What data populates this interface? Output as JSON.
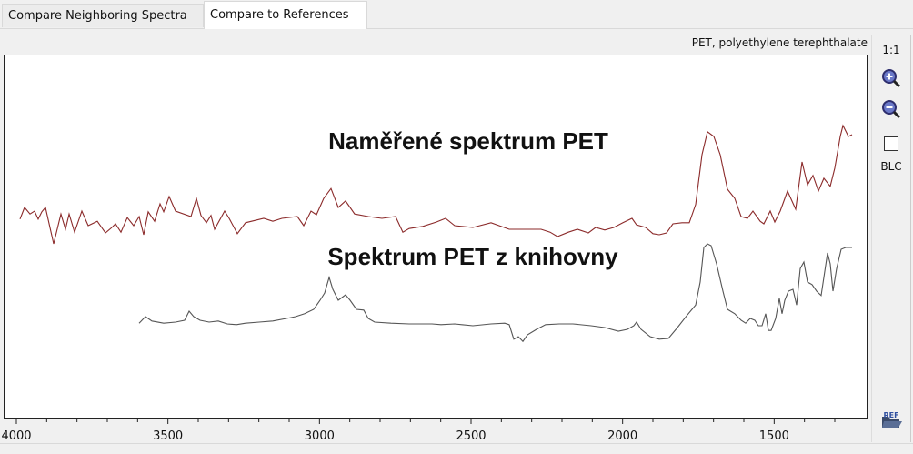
{
  "tabs": [
    {
      "label": "Compare Neighboring Spectra",
      "active": false
    },
    {
      "label": "Compare to References",
      "active": true
    }
  ],
  "reference_name": "PET, polyethylene terephthalate",
  "toolbar": {
    "one_to_one": "1:1",
    "zoom_in_icon": "zoom-in-icon",
    "zoom_out_icon": "zoom-out-icon",
    "blc_checked": false,
    "blc_label": "BLC",
    "ref_icon": "ref-folder-icon",
    "ref_icon_text": "REF"
  },
  "chart_data": {
    "type": "line",
    "xlabel": "",
    "ylabel": "",
    "xlim": [
      4000,
      1200
    ],
    "xticks": [
      4000,
      3500,
      3000,
      2500,
      2000,
      1500
    ],
    "minor_tick_step": 100,
    "y_axis_shown": false,
    "grid": false,
    "annotations": [
      "Naměřené spektrum PET",
      "Spektrum PET z knihovny"
    ],
    "series": [
      {
        "name": "Naměřené spektrum PET",
        "color": "#8b2a2a",
        "points": [
          [
            3988,
            54.8
          ],
          [
            3973,
            58
          ],
          [
            3955,
            56.2
          ],
          [
            3940,
            57
          ],
          [
            3928,
            54.8
          ],
          [
            3916,
            56.8
          ],
          [
            3904,
            58
          ],
          [
            3877,
            48
          ],
          [
            3853,
            56.2
          ],
          [
            3838,
            52
          ],
          [
            3826,
            56.2
          ],
          [
            3808,
            51.2
          ],
          [
            3784,
            57
          ],
          [
            3763,
            53
          ],
          [
            3733,
            54.2
          ],
          [
            3706,
            51
          ],
          [
            3685,
            52.5
          ],
          [
            3673,
            53.5
          ],
          [
            3655,
            51.2
          ],
          [
            3634,
            55.2
          ],
          [
            3613,
            53
          ],
          [
            3595,
            55.5
          ],
          [
            3580,
            50.5
          ],
          [
            3565,
            56.8
          ],
          [
            3544,
            54.2
          ],
          [
            3526,
            59
          ],
          [
            3514,
            56.8
          ],
          [
            3496,
            61
          ],
          [
            3475,
            57
          ],
          [
            3424,
            55.5
          ],
          [
            3406,
            60.5
          ],
          [
            3391,
            55.8
          ],
          [
            3373,
            53.8
          ],
          [
            3358,
            55.8
          ],
          [
            3346,
            52
          ],
          [
            3313,
            57
          ],
          [
            3298,
            55
          ],
          [
            3271,
            50.8
          ],
          [
            3244,
            53.8
          ],
          [
            3184,
            55
          ],
          [
            3154,
            54.2
          ],
          [
            3124,
            55
          ],
          [
            3073,
            55.5
          ],
          [
            3052,
            53
          ],
          [
            3028,
            57
          ],
          [
            3010,
            56
          ],
          [
            2986,
            60.5
          ],
          [
            2962,
            63.2
          ],
          [
            2938,
            58
          ],
          [
            2914,
            59.8
          ],
          [
            2884,
            56.2
          ],
          [
            2839,
            55.5
          ],
          [
            2794,
            55
          ],
          [
            2749,
            55.5
          ],
          [
            2725,
            51.2
          ],
          [
            2704,
            52.2
          ],
          [
            2659,
            52.8
          ],
          [
            2614,
            54
          ],
          [
            2584,
            55
          ],
          [
            2554,
            53
          ],
          [
            2494,
            52.5
          ],
          [
            2434,
            53.8
          ],
          [
            2374,
            52
          ],
          [
            2314,
            52
          ],
          [
            2269,
            52
          ],
          [
            2239,
            51.2
          ],
          [
            2215,
            50
          ],
          [
            2179,
            51.2
          ],
          [
            2149,
            52
          ],
          [
            2113,
            51
          ],
          [
            2089,
            52.5
          ],
          [
            2059,
            51.8
          ],
          [
            2029,
            52.5
          ],
          [
            1999,
            53.8
          ],
          [
            1969,
            55
          ],
          [
            1954,
            53.2
          ],
          [
            1924,
            52.5
          ],
          [
            1900,
            50.8
          ],
          [
            1879,
            50.5
          ],
          [
            1855,
            51
          ],
          [
            1834,
            53.5
          ],
          [
            1804,
            53.8
          ],
          [
            1780,
            53.8
          ],
          [
            1759,
            58.8
          ],
          [
            1738,
            72.5
          ],
          [
            1720,
            78.8
          ],
          [
            1699,
            77.5
          ],
          [
            1678,
            72.5
          ],
          [
            1654,
            63
          ],
          [
            1630,
            60.5
          ],
          [
            1609,
            55.5
          ],
          [
            1588,
            55
          ],
          [
            1570,
            57
          ],
          [
            1546,
            54.2
          ],
          [
            1534,
            53.5
          ],
          [
            1513,
            57
          ],
          [
            1498,
            54
          ],
          [
            1480,
            57
          ],
          [
            1456,
            62.5
          ],
          [
            1429,
            57.5
          ],
          [
            1408,
            70.5
          ],
          [
            1390,
            64.2
          ],
          [
            1372,
            66.8
          ],
          [
            1354,
            62.5
          ],
          [
            1336,
            66
          ],
          [
            1315,
            63.8
          ],
          [
            1300,
            68.8
          ],
          [
            1282,
            77.5
          ],
          [
            1273,
            80.5
          ],
          [
            1255,
            77.5
          ],
          [
            1243,
            78
          ]
        ]
      },
      {
        "name": "Spektrum PET z knihovny",
        "color": "#555555",
        "points": [
          [
            3595,
            26.2
          ],
          [
            3574,
            28
          ],
          [
            3553,
            26.8
          ],
          [
            3514,
            26.2
          ],
          [
            3475,
            26.5
          ],
          [
            3445,
            27
          ],
          [
            3430,
            29.5
          ],
          [
            3415,
            28
          ],
          [
            3394,
            27
          ],
          [
            3364,
            26.5
          ],
          [
            3334,
            26.8
          ],
          [
            3304,
            26
          ],
          [
            3274,
            25.8
          ],
          [
            3244,
            26.2
          ],
          [
            3199,
            26.5
          ],
          [
            3154,
            26.8
          ],
          [
            3109,
            27.5
          ],
          [
            3079,
            28
          ],
          [
            3049,
            28.8
          ],
          [
            3019,
            30
          ],
          [
            2998,
            32.5
          ],
          [
            2983,
            34.5
          ],
          [
            2968,
            38.8
          ],
          [
            2956,
            35.5
          ],
          [
            2938,
            32.5
          ],
          [
            2914,
            34
          ],
          [
            2899,
            32.5
          ],
          [
            2878,
            30
          ],
          [
            2854,
            29.8
          ],
          [
            2839,
            27.5
          ],
          [
            2818,
            26.5
          ],
          [
            2764,
            26.2
          ],
          [
            2704,
            26
          ],
          [
            2629,
            26
          ],
          [
            2599,
            25.8
          ],
          [
            2554,
            26
          ],
          [
            2494,
            25.5
          ],
          [
            2434,
            26
          ],
          [
            2389,
            26.2
          ],
          [
            2374,
            25.8
          ],
          [
            2359,
            21.8
          ],
          [
            2344,
            22.5
          ],
          [
            2329,
            21.2
          ],
          [
            2314,
            23
          ],
          [
            2284,
            24.5
          ],
          [
            2254,
            25.8
          ],
          [
            2209,
            26
          ],
          [
            2164,
            26
          ],
          [
            2104,
            25.5
          ],
          [
            2059,
            25
          ],
          [
            2014,
            24
          ],
          [
            1984,
            24.5
          ],
          [
            1963,
            25.5
          ],
          [
            1954,
            26.5
          ],
          [
            1939,
            24.5
          ],
          [
            1909,
            22.5
          ],
          [
            1879,
            21.8
          ],
          [
            1849,
            22
          ],
          [
            1819,
            25
          ],
          [
            1789,
            28.2
          ],
          [
            1759,
            31.2
          ],
          [
            1744,
            37.5
          ],
          [
            1732,
            47
          ],
          [
            1720,
            48
          ],
          [
            1708,
            47.5
          ],
          [
            1690,
            42.5
          ],
          [
            1669,
            35
          ],
          [
            1654,
            30
          ],
          [
            1630,
            28.8
          ],
          [
            1609,
            27
          ],
          [
            1594,
            26.2
          ],
          [
            1579,
            27.5
          ],
          [
            1564,
            27
          ],
          [
            1552,
            25.5
          ],
          [
            1540,
            25.5
          ],
          [
            1528,
            28.8
          ],
          [
            1519,
            24.2
          ],
          [
            1510,
            24.2
          ],
          [
            1495,
            27.5
          ],
          [
            1483,
            33
          ],
          [
            1474,
            28.8
          ],
          [
            1465,
            32.5
          ],
          [
            1453,
            35
          ],
          [
            1438,
            35.5
          ],
          [
            1426,
            31.2
          ],
          [
            1414,
            41.2
          ],
          [
            1402,
            43
          ],
          [
            1390,
            37.5
          ],
          [
            1375,
            36.8
          ],
          [
            1360,
            35
          ],
          [
            1345,
            33.8
          ],
          [
            1336,
            38.8
          ],
          [
            1324,
            45.5
          ],
          [
            1315,
            42.5
          ],
          [
            1306,
            35
          ],
          [
            1294,
            41.2
          ],
          [
            1279,
            46.5
          ],
          [
            1264,
            47
          ],
          [
            1243,
            47
          ]
        ]
      }
    ]
  }
}
